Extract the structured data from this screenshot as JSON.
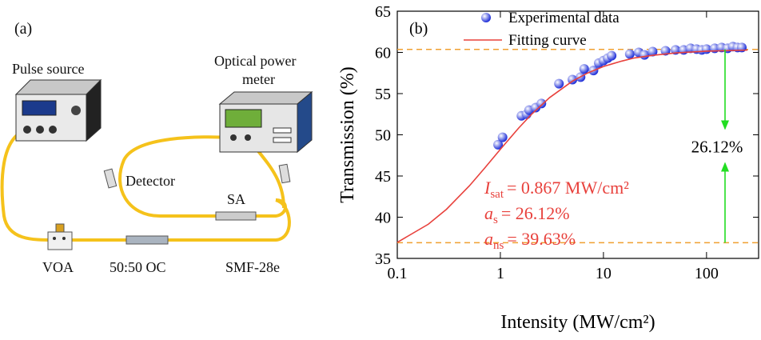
{
  "panel_a": {
    "label": "(a)",
    "components": {
      "pulse_source": "Pulse source",
      "power_meter": [
        "Optical power",
        "meter"
      ],
      "detector": "Detector",
      "sa": "SA",
      "voa": "VOA",
      "coupler": "50:50 OC",
      "fiber": "SMF-28e"
    }
  },
  "chart_data": {
    "type": "scatter",
    "panel_label": "(b)",
    "xlabel": "Intensity (MW/cm²)",
    "ylabel": "Transmission (%)",
    "xscale": "log",
    "xlim": [
      0.1,
      320
    ],
    "xticks": [
      0.1,
      1,
      10,
      100
    ],
    "ylim": [
      35,
      65
    ],
    "yticks": [
      35,
      40,
      45,
      50,
      55,
      60,
      65
    ],
    "legend": "upper center",
    "series": [
      {
        "name": "Experimental data",
        "type": "scatter",
        "color": "#1f2fd8",
        "x": [
          0.95,
          1.05,
          1.6,
          1.8,
          1.9,
          2.2,
          2.5,
          3.7,
          5.0,
          6.0,
          6.5,
          8,
          9,
          10,
          11,
          12,
          18,
          22,
          25,
          30,
          40,
          50,
          60,
          70,
          80,
          90,
          100,
          120,
          140,
          160,
          180,
          200,
          220
        ],
        "values": [
          48.8,
          49.7,
          52.3,
          52.5,
          53.0,
          53.3,
          53.8,
          56.2,
          56.7,
          57.0,
          58.0,
          57.8,
          58.7,
          59.0,
          59.3,
          59.6,
          59.8,
          60.0,
          59.7,
          60.1,
          60.2,
          60.3,
          60.3,
          60.5,
          60.4,
          60.3,
          60.4,
          60.5,
          60.6,
          60.5,
          60.7,
          60.6,
          60.6
        ]
      },
      {
        "name": "Fitting curve",
        "type": "line",
        "color": "#e8413c",
        "x": [
          0.1,
          0.2,
          0.3,
          0.5,
          0.7,
          1,
          1.5,
          2,
          3,
          5,
          7,
          10,
          15,
          20,
          30,
          50,
          100,
          250
        ],
        "values": [
          36.95,
          39.15,
          40.96,
          43.8,
          45.92,
          48.24,
          50.8,
          52.47,
          54.51,
          56.51,
          57.49,
          58.29,
          58.94,
          59.33,
          59.64,
          59.93,
          60.15,
          60.28
        ]
      }
    ],
    "hlines": {
      "values": [
        60.37,
        36.9
      ],
      "color": "#f0a030"
    },
    "annotations": [
      {
        "var": "I",
        "sub": "sat",
        "rest": "= 0.867 MW/cm²"
      },
      {
        "var": "a",
        "sub": "s",
        "rest": "= 26.12%"
      },
      {
        "var": "a",
        "sub": "ns",
        "rest": "= 39.63%"
      }
    ],
    "annotation_color": "#e8413c",
    "arrow_label": "26.12%",
    "arrow_color": "#22dd22"
  }
}
